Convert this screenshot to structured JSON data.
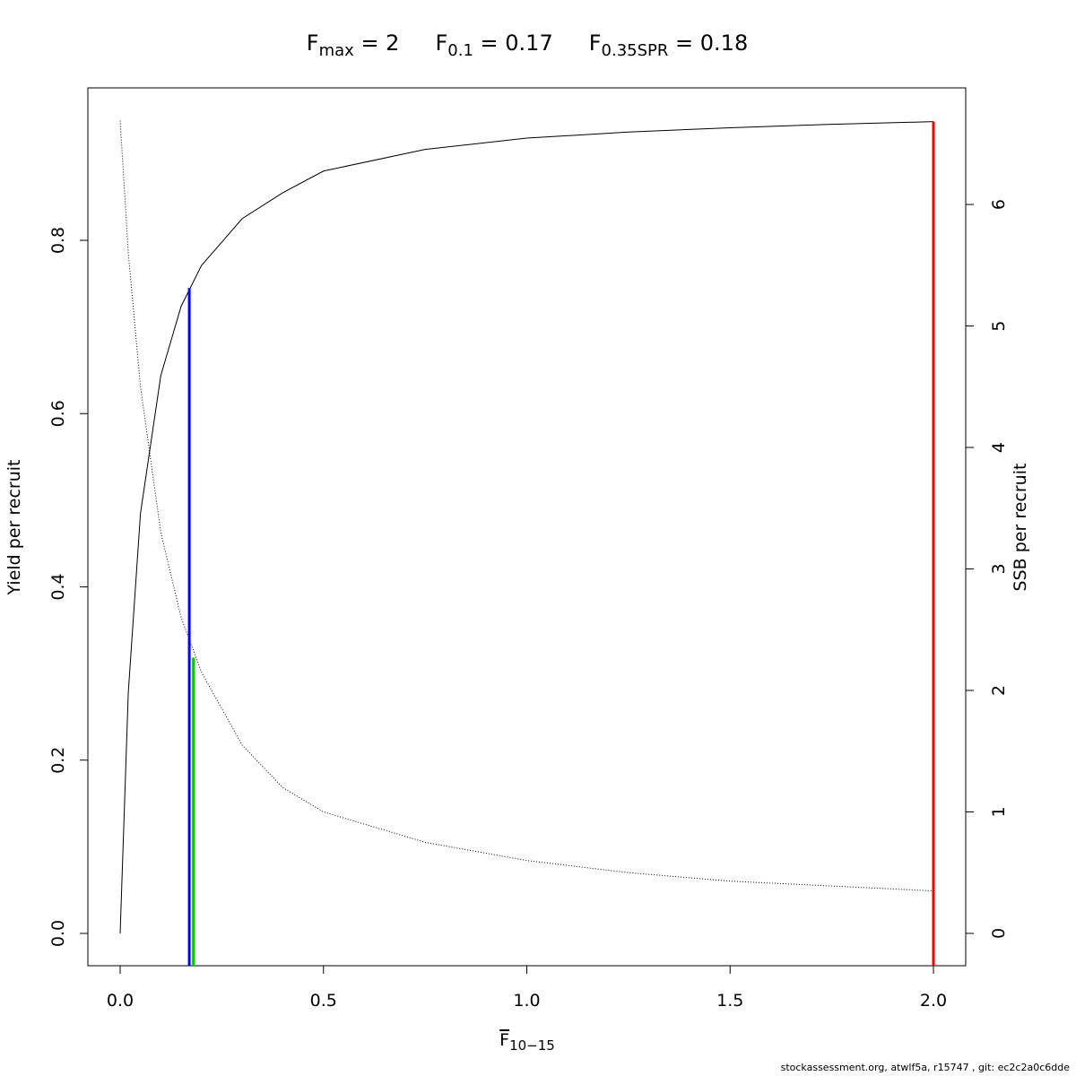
{
  "chart_data": {
    "type": "line",
    "title_parts": [
      {
        "main": "F",
        "sub": "max",
        "rest": " = 2"
      },
      {
        "main": "F",
        "sub": "0.1",
        "rest": " = 0.17"
      },
      {
        "main": "F",
        "sub": "0.35SPR",
        "rest": " = 0.18"
      }
    ],
    "x_label": {
      "main": "F",
      "sub": "10−15"
    },
    "y_label": "Yield per recruit",
    "y2_label": "SSB per recruit",
    "footer": "stockassessment.org, atwlf5a, r15747 , git: ec2c2a0c6dde",
    "x": [
      0,
      0.02,
      0.05,
      0.1,
      0.15,
      0.2,
      0.3,
      0.4,
      0.5,
      0.75,
      1.0,
      1.25,
      1.5,
      1.75,
      2.0
    ],
    "series": [
      {
        "color": "#000000",
        "dash": "solid",
        "values": [
          0,
          0.278,
          0.485,
          0.644,
          0.724,
          0.771,
          0.825,
          0.855,
          0.88,
          0.905,
          0.918,
          0.925,
          0.93,
          0.934,
          0.937
        ]
      },
      {
        "color": "#000000",
        "dash": "dotted",
        "axis": "y2",
        "values": [
          6.69,
          5.6,
          4.5,
          3.3,
          2.6,
          2.15,
          1.55,
          1.2,
          1.0,
          0.75,
          0.6,
          0.5,
          0.43,
          0.39,
          0.35
        ]
      }
    ],
    "reference_lines": [
      {
        "x": 0.17,
        "y": 0.745,
        "color": "#0000ff"
      },
      {
        "x": 0.18,
        "y": 2.27,
        "axis": "y2",
        "color": "#00cc00"
      },
      {
        "x": 2.0,
        "y": 0.937,
        "color": "#ff0000"
      }
    ],
    "xlim": [
      -0.0794,
      2.0794
    ],
    "ylim": [
      -0.0373,
      0.976
    ],
    "y2lim": [
      -0.266,
      6.96
    ],
    "xticks": [
      {
        "value": 0,
        "label": "0.0"
      },
      {
        "value": 0.5,
        "label": "0.5"
      },
      {
        "value": 1,
        "label": "1.0"
      },
      {
        "value": 1.5,
        "label": "1.5"
      },
      {
        "value": 2,
        "label": "2.0"
      }
    ],
    "yticks": [
      {
        "value": 0,
        "label": "0.0"
      },
      {
        "value": 0.2,
        "label": "0.2"
      },
      {
        "value": 0.4,
        "label": "0.4"
      },
      {
        "value": 0.6,
        "label": "0.6"
      },
      {
        "value": 0.8,
        "label": "0.8"
      }
    ],
    "y2ticks": [
      0,
      1,
      2,
      3,
      4,
      5,
      6
    ],
    "grid": false
  }
}
